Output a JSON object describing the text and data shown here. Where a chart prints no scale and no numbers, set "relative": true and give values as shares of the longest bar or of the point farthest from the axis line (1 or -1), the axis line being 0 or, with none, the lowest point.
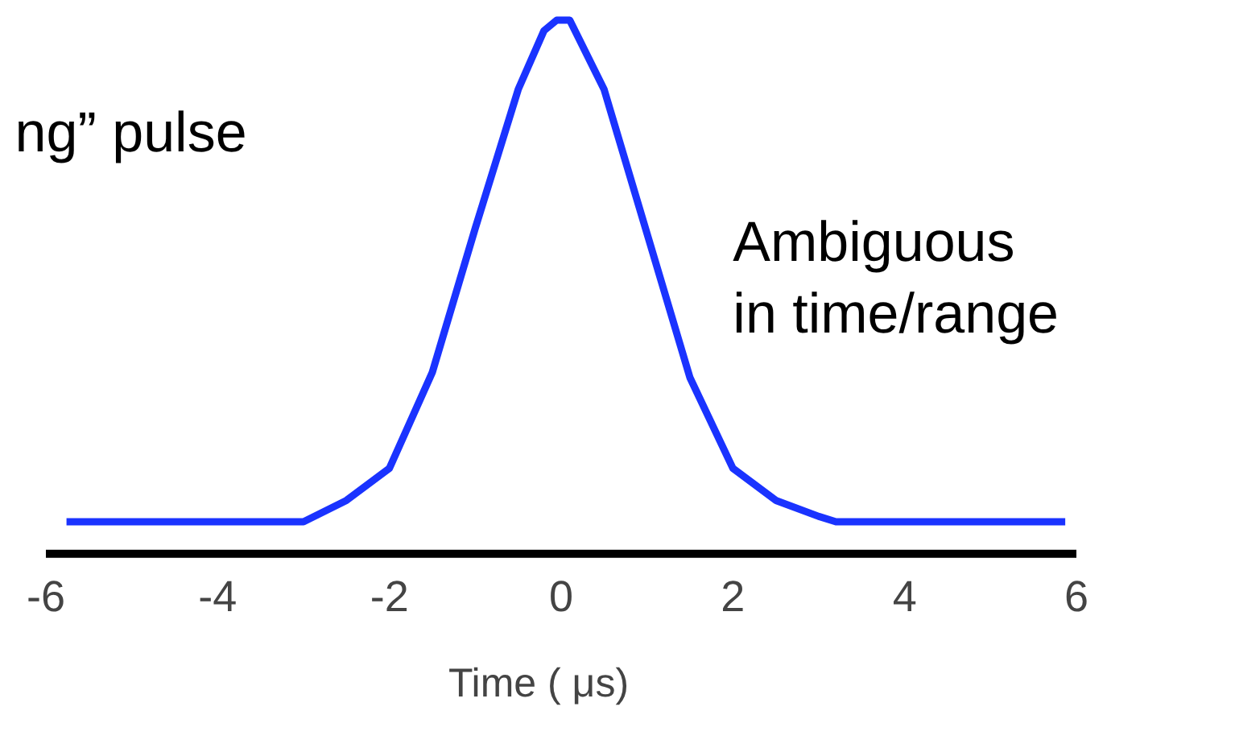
{
  "chart_data": {
    "type": "line",
    "relative": true,
    "xlabel": "Time ( μs)",
    "xlim": [
      -6,
      6
    ],
    "xticks": [
      -6,
      -4,
      -2,
      0,
      2,
      4,
      6
    ],
    "annotations": [
      "ng” pulse",
      "Ambiguous\nin time/range"
    ],
    "series": [
      {
        "color": "#1a33ff",
        "x": [
          -5.76,
          -3,
          -2.5,
          -2,
          -1.5,
          -1,
          -0.5,
          -0.2,
          -0.05,
          0.1,
          0.5,
          1,
          1.5,
          2,
          2.5,
          3,
          3.2,
          5.87
        ],
        "values": [
          0.06,
          0.06,
          0.1,
          0.16,
          0.34,
          0.61,
          0.87,
          0.98,
          1.0,
          1.0,
          0.87,
          0.6,
          0.33,
          0.16,
          0.1,
          0.07,
          0.06,
          0.06
        ]
      }
    ]
  }
}
